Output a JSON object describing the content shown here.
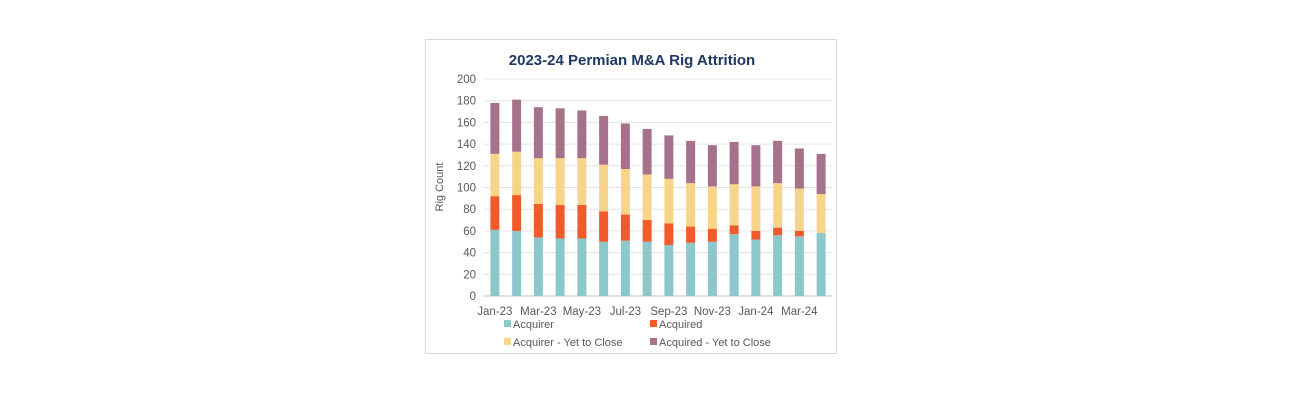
{
  "chart_data": {
    "type": "bar",
    "stacked": true,
    "title": "2023-24 Permian M&A Rig Attrition",
    "xlabel": "",
    "ylabel": "Rig Count",
    "ylim": [
      0,
      200
    ],
    "yticks": [
      0,
      20,
      40,
      60,
      80,
      100,
      120,
      140,
      160,
      180,
      200
    ],
    "grid": true,
    "legend_position": "bottom",
    "categories": [
      "Jan-23",
      "Feb-23",
      "Mar-23",
      "Apr-23",
      "May-23",
      "Jun-23",
      "Jul-23",
      "Aug-23",
      "Sep-23",
      "Oct-23",
      "Nov-23",
      "Dec-23",
      "Jan-24",
      "Feb-24",
      "Mar-24",
      "Apr-24"
    ],
    "x_tick_labels": [
      "Jan-23",
      "Mar-23",
      "May-23",
      "Jul-23",
      "Sep-23",
      "Nov-23",
      "Jan-24",
      "Mar-24"
    ],
    "series": [
      {
        "name": "Acquirer",
        "color": "#8cc7c9",
        "values": [
          61,
          60,
          54,
          53,
          53,
          50,
          51,
          50,
          47,
          49,
          50,
          57,
          52,
          56,
          55,
          58
        ]
      },
      {
        "name": "Acquired",
        "color": "#f15a2b",
        "values": [
          31,
          33,
          31,
          31,
          31,
          28,
          24,
          20,
          20,
          15,
          12,
          8,
          8,
          7,
          5,
          0
        ]
      },
      {
        "name": "Acquirer - Yet to Close",
        "color": "#f6d58b",
        "values": [
          39,
          40,
          42,
          43,
          43,
          43,
          42,
          42,
          41,
          40,
          39,
          38,
          41,
          41,
          39,
          36
        ]
      },
      {
        "name": "Acquired - Yet to Close",
        "color": "#a6728b",
        "values": [
          47,
          48,
          47,
          46,
          44,
          45,
          42,
          42,
          40,
          39,
          38,
          39,
          38,
          39,
          37,
          37
        ]
      }
    ]
  }
}
